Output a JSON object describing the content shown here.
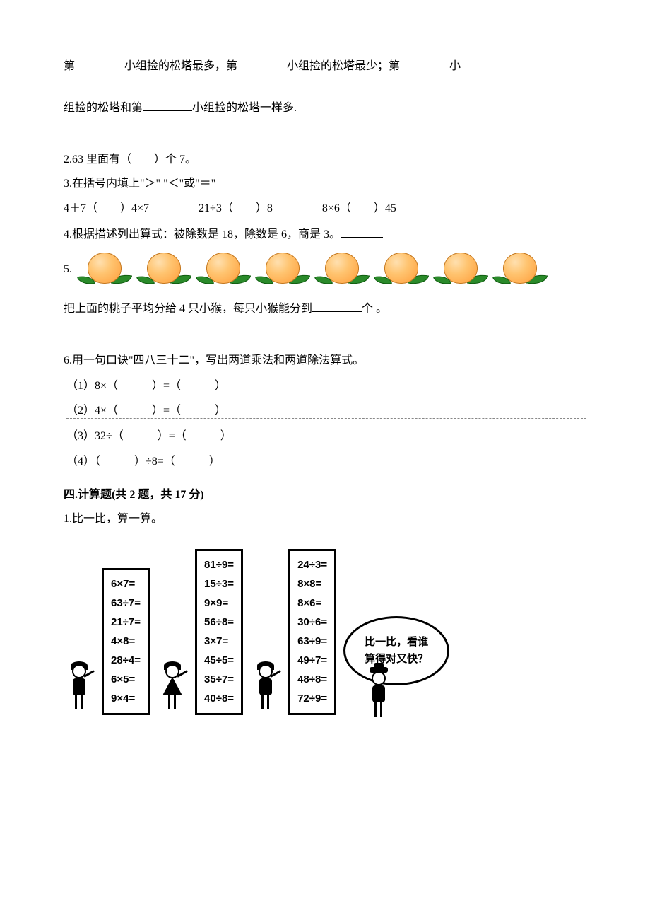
{
  "q1": {
    "line1_a": "第",
    "line1_b": "小组捡的松塔最多，第",
    "line1_c": "小组捡的松塔最少；第",
    "line1_d": "小",
    "line2_a": "组捡的松塔和第",
    "line2_b": "小组捡的松塔一样多."
  },
  "q2": "2.63 里面有（　　）个 7。",
  "q3": {
    "intro": "3.在括号内填上\"＞\" \"＜\"或\"＝\"",
    "items": [
      "4＋7（　　）4×7",
      "21÷3（　　）8",
      "8×6（　　）45"
    ]
  },
  "q4": {
    "text": "4.根据描述列出算式：被除数是 18，除数是 6，商是 3。"
  },
  "q5": {
    "prefix": "5.",
    "peach_count": 8,
    "text_a": "把上面的桃子平均分给 4 只小猴，每只小猴能分到",
    "text_b": "个 。"
  },
  "q6": {
    "intro": "6.用一句口诀\"四八三十二\"，写出两道乘法和两道除法算式。",
    "items": [
      "（1）8×（　　　）=（　　　）",
      "（2）4×（　　　）=（　　　）",
      "（3）32÷（　　　）=（　　　）",
      "（4）（　　　）÷8=（　　　）"
    ]
  },
  "section4": {
    "title": "四.计算题(共 2 题，共 17 分)",
    "q1": "1.比一比，算一算。"
  },
  "calc": {
    "box1": [
      "6×7=",
      "63÷7=",
      "21÷7=",
      "4×8=",
      "28÷4=",
      "6×5=",
      "9×4="
    ],
    "box2": [
      "81÷9=",
      "15÷3=",
      "9×9=",
      "56÷8=",
      "3×7=",
      "45÷5=",
      "35÷7=",
      "40÷8="
    ],
    "box3": [
      "24÷3=",
      "8×8=",
      "8×6=",
      "30÷6=",
      "63÷9=",
      "49÷7=",
      "48÷8=",
      "72÷9="
    ],
    "bubble_l1": "比一比，看谁",
    "bubble_l2": "算得对又快？"
  }
}
